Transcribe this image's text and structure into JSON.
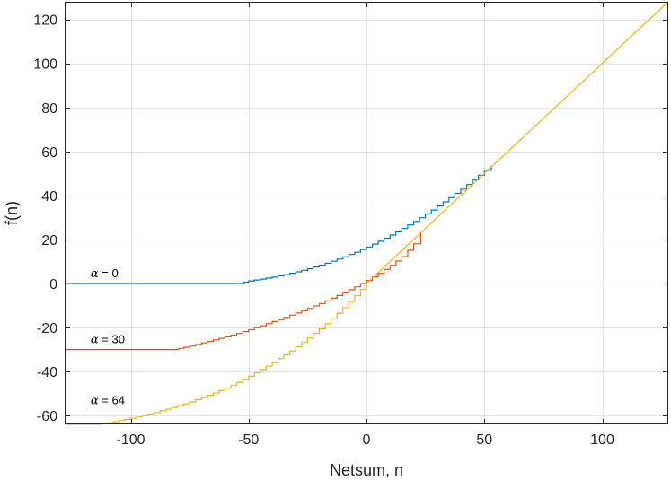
{
  "chart_data": {
    "type": "line",
    "title": "",
    "xlabel": "Netsum, n",
    "ylabel": "f(n)",
    "xlim": [
      -128,
      128
    ],
    "ylim": [
      -64,
      128
    ],
    "xticks": [
      -100,
      -50,
      0,
      50,
      100
    ],
    "yticks": [
      -60,
      -40,
      -20,
      0,
      20,
      40,
      60,
      80,
      100,
      120
    ],
    "xtick_labels": [
      "-100",
      "-50",
      "0",
      "50",
      "100"
    ],
    "ytick_labels": [
      "-60",
      "-40",
      "-20",
      "0",
      "20",
      "40",
      "60",
      "80",
      "100",
      "120"
    ],
    "grid": true,
    "colors": [
      "#0072BD",
      "#D95319",
      "#EDB120",
      "#EDB120"
    ],
    "series": [
      {
        "x": [
          -128,
          -54,
          -50,
          -45,
          -40,
          -35,
          -30,
          -25,
          -20,
          -15,
          -10,
          -5,
          0,
          5,
          10,
          15,
          20,
          25,
          30,
          35,
          40,
          45,
          50,
          53
        ],
        "y": [
          0,
          0,
          1.2,
          2.0,
          2.9,
          4.0,
          5.3,
          6.7,
          8.3,
          10.1,
          12.1,
          14.2,
          16.6,
          19.2,
          22.0,
          25.0,
          28.2,
          31.6,
          35.2,
          39.0,
          42.9,
          47.0,
          51.4,
          53.5
        ]
      },
      {
        "x": [
          -128,
          -82,
          -75,
          -70,
          -65,
          -60,
          -55,
          -50,
          -45,
          -40,
          -35,
          -30,
          -25,
          -20,
          -15,
          -10,
          -5,
          0,
          5,
          10,
          15,
          20,
          23
        ],
        "y": [
          -30,
          -30,
          -28.4,
          -27.0,
          -25.6,
          -24.2,
          -22.7,
          -21.0,
          -19.2,
          -17.3,
          -15.4,
          -13.4,
          -11.3,
          -9.1,
          -6.7,
          -4.2,
          -1.5,
          1.4,
          4.6,
          8.2,
          12.2,
          18.0,
          23.0
        ]
      },
      {
        "x": [
          -128,
          -115,
          -110,
          -105,
          -100,
          -95,
          -90,
          -85,
          -80,
          -75,
          -70,
          -65,
          -60,
          -55,
          -50,
          -45,
          -40,
          -35,
          -30,
          -25,
          -20,
          -15,
          -10,
          -5,
          0
        ],
        "y": [
          -64,
          -64,
          -63.3,
          -62.3,
          -61.2,
          -60.0,
          -58.6,
          -57.1,
          -55.5,
          -53.8,
          -51.8,
          -49.8,
          -47.5,
          -44.9,
          -42.1,
          -39.1,
          -35.9,
          -32.4,
          -28.8,
          -24.8,
          -20.6,
          -16.0,
          -11.0,
          -5.5,
          0
        ]
      },
      {
        "x": [
          0,
          128
        ],
        "y": [
          0,
          128
        ]
      }
    ],
    "annotations": [
      {
        "symbol": "α",
        "text": " = 0",
        "x": -117,
        "y": 2.8
      },
      {
        "symbol": "α",
        "text": " = 30",
        "x": -117,
        "y": -27.2
      },
      {
        "symbol": "α",
        "text": " = 64",
        "x": -117,
        "y": -54.8
      }
    ]
  }
}
